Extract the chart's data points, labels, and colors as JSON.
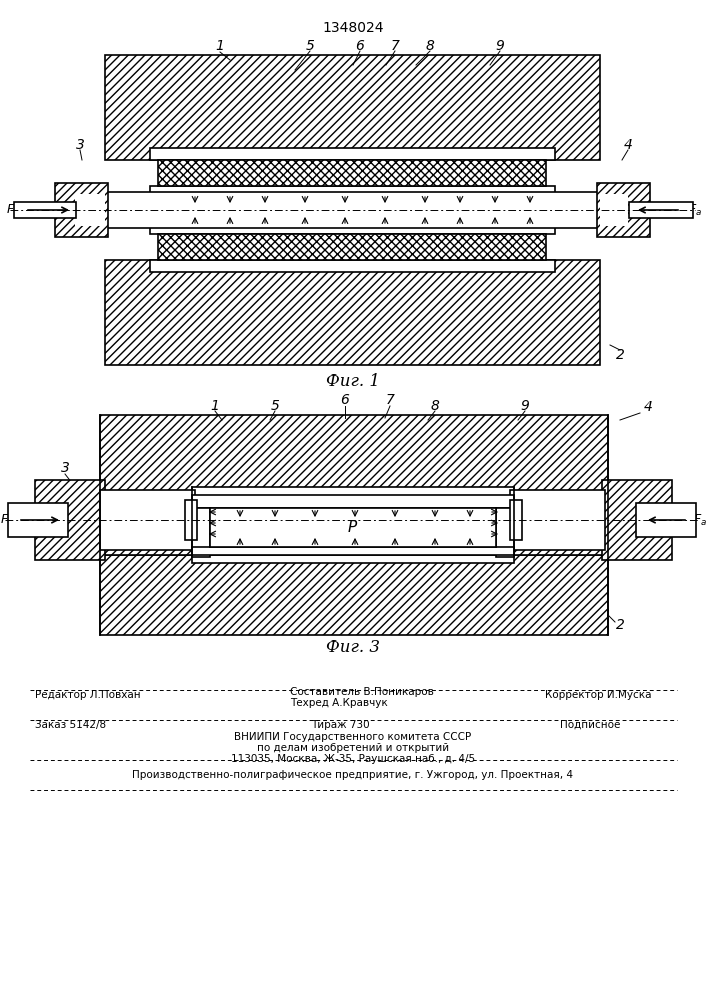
{
  "title": "1348024",
  "fig1_caption": "Фиг. 1",
  "fig3_caption": "Фиг. 3",
  "lw": 1.2,
  "bg_color": "#ffffff",
  "fg_color": "#000000"
}
